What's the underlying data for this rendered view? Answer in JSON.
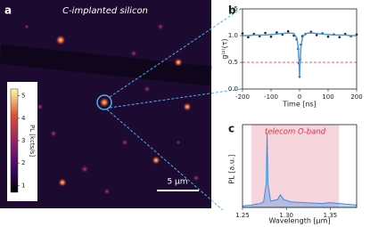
{
  "chart_data": [
    {
      "type": "image",
      "panel": "a",
      "title": "C-implanted silicon",
      "colorbar_label": "PL [kcts/s]",
      "clim": [
        0.7,
        5.3
      ],
      "colorbar_ticks": [
        1,
        2,
        3,
        4,
        5
      ],
      "scalebar_label": "5 µm"
    },
    {
      "type": "line",
      "panel": "b",
      "xlabel": "Time [ns]",
      "ylabel": "g⁽²⁾(τ)",
      "x": [
        -200,
        -180,
        -160,
        -140,
        -120,
        -100,
        -80,
        -60,
        -40,
        -20,
        -10,
        -5,
        -2,
        0,
        2,
        5,
        10,
        20,
        40,
        60,
        80,
        100,
        120,
        140,
        160,
        180,
        200
      ],
      "series": [
        {
          "color": "#222222",
          "style": "markers",
          "values": [
            1.04,
            0.97,
            1.03,
            0.99,
            1.05,
            0.98,
            1.06,
            1.02,
            1.08,
            1.0,
            0.93,
            0.75,
            0.48,
            0.23,
            0.55,
            0.83,
            0.99,
            1.03,
            1.07,
            1.01,
            1.04,
            0.98,
            1.02,
            0.97,
            1.03,
            0.99,
            1.02
          ]
        },
        {
          "color": "#4a9be0",
          "style": "line",
          "values": [
            1.0,
            1.0,
            1.01,
            1.01,
            1.01,
            1.02,
            1.03,
            1.04,
            1.05,
            1.04,
            0.96,
            0.8,
            0.52,
            0.21,
            0.52,
            0.8,
            0.96,
            1.04,
            1.05,
            1.04,
            1.03,
            1.02,
            1.01,
            1.01,
            1.01,
            1.0,
            1.0
          ]
        }
      ],
      "hline": {
        "value": 0.5,
        "color": "#d9304a"
      },
      "xlim": [
        -200,
        200
      ],
      "xticks": [
        -200,
        -100,
        0,
        100,
        200
      ],
      "ylim": [
        0,
        1.5
      ],
      "yticks": [
        {
          "value": 0,
          "label": "0.0"
        },
        {
          "value": 0.5,
          "label": "0.5"
        },
        {
          "value": 1,
          "label": "1.0"
        },
        {
          "value": 1.5,
          "label": "1.5"
        }
      ]
    },
    {
      "type": "area",
      "panel": "c",
      "xlabel": "Wavelength [µm]",
      "ylabel": "PL [a.u.]",
      "x": [
        1.25,
        1.26,
        1.27,
        1.274,
        1.277,
        1.278,
        1.279,
        1.282,
        1.29,
        1.293,
        1.297,
        1.305,
        1.32,
        1.34,
        1.35,
        1.36,
        1.37,
        1.38
      ],
      "series": [
        {
          "color": "#3d8fe0",
          "values": [
            0.02,
            0.03,
            0.05,
            0.07,
            0.3,
            0.95,
            0.3,
            0.08,
            0.1,
            0.16,
            0.1,
            0.07,
            0.06,
            0.05,
            0.06,
            0.05,
            0.04,
            0.03
          ]
        }
      ],
      "span": [
        1.26,
        1.36
      ],
      "span_label": "telecom O-band",
      "span_color": "#f6d5dc",
      "xlim": [
        1.25,
        1.38
      ],
      "xticks": [
        {
          "value": 1.25,
          "label": "1.25"
        },
        {
          "value": 1.3,
          "label": "1.30"
        },
        {
          "value": 1.35,
          "label": "1.35"
        }
      ],
      "ylim": [
        0,
        1.05
      ]
    }
  ]
}
